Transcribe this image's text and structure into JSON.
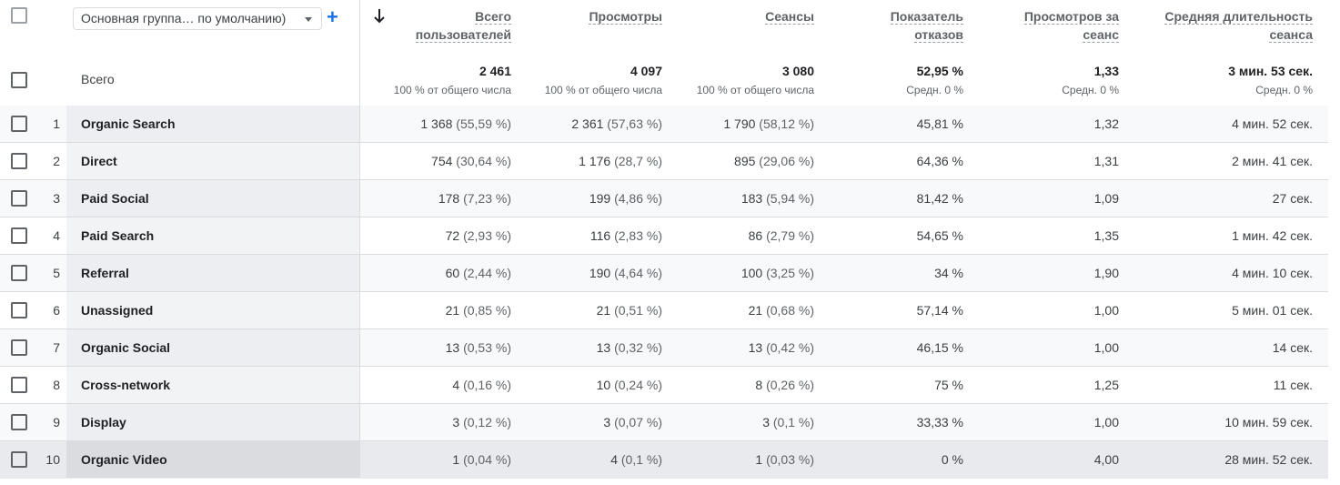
{
  "header": {
    "dimension_select": "Основная группа… по умолчанию)",
    "total_label": "Всего",
    "columns": [
      {
        "line1": "Всего",
        "line2": "пользователей"
      },
      {
        "line1": "Просмотры",
        "line2": ""
      },
      {
        "line1": "Сеансы",
        "line2": ""
      },
      {
        "line1": "Показатель",
        "line2": "отказов"
      },
      {
        "line1": "Просмотров за",
        "line2": "сеанс"
      },
      {
        "line1": "Средняя длительность",
        "line2": "сеанса"
      }
    ],
    "totals": [
      {
        "value": "2 461",
        "sub": "100 % от общего числа"
      },
      {
        "value": "4 097",
        "sub": "100 % от общего числа"
      },
      {
        "value": "3 080",
        "sub": "100 % от общего числа"
      },
      {
        "value": "52,95 %",
        "sub": "Средн. 0 %"
      },
      {
        "value": "1,33",
        "sub": "Средн. 0 %"
      },
      {
        "value": "3 мин. 53 сек.",
        "sub": "Средн. 0 %"
      }
    ]
  },
  "rows": [
    {
      "n": "1",
      "name": "Organic Search",
      "users": "1 368",
      "users_pct": "(55,59 %)",
      "views": "2 361",
      "views_pct": "(57,63 %)",
      "sessions": "1 790",
      "sessions_pct": "(58,12 %)",
      "bounce": "45,81 %",
      "vps": "1,32",
      "dur": "4 мин. 52 сек."
    },
    {
      "n": "2",
      "name": "Direct",
      "users": "754",
      "users_pct": "(30,64 %)",
      "views": "1 176",
      "views_pct": "(28,7 %)",
      "sessions": "895",
      "sessions_pct": "(29,06 %)",
      "bounce": "64,36 %",
      "vps": "1,31",
      "dur": "2 мин. 41 сек."
    },
    {
      "n": "3",
      "name": "Paid Social",
      "users": "178",
      "users_pct": "(7,23 %)",
      "views": "199",
      "views_pct": "(4,86 %)",
      "sessions": "183",
      "sessions_pct": "(5,94 %)",
      "bounce": "81,42 %",
      "vps": "1,09",
      "dur": "27 сек."
    },
    {
      "n": "4",
      "name": "Paid Search",
      "users": "72",
      "users_pct": "(2,93 %)",
      "views": "116",
      "views_pct": "(2,83 %)",
      "sessions": "86",
      "sessions_pct": "(2,79 %)",
      "bounce": "54,65 %",
      "vps": "1,35",
      "dur": "1 мин. 42 сек."
    },
    {
      "n": "5",
      "name": "Referral",
      "users": "60",
      "users_pct": "(2,44 %)",
      "views": "190",
      "views_pct": "(4,64 %)",
      "sessions": "100",
      "sessions_pct": "(3,25 %)",
      "bounce": "34 %",
      "vps": "1,90",
      "dur": "4 мин. 10 сек."
    },
    {
      "n": "6",
      "name": "Unassigned",
      "users": "21",
      "users_pct": "(0,85 %)",
      "views": "21",
      "views_pct": "(0,51 %)",
      "sessions": "21",
      "sessions_pct": "(0,68 %)",
      "bounce": "57,14 %",
      "vps": "1,00",
      "dur": "5 мин. 01 сек."
    },
    {
      "n": "7",
      "name": "Organic Social",
      "users": "13",
      "users_pct": "(0,53 %)",
      "views": "13",
      "views_pct": "(0,32 %)",
      "sessions": "13",
      "sessions_pct": "(0,42 %)",
      "bounce": "46,15 %",
      "vps": "1,00",
      "dur": "14 сек."
    },
    {
      "n": "8",
      "name": "Cross-network",
      "users": "4",
      "users_pct": "(0,16 %)",
      "views": "10",
      "views_pct": "(0,24 %)",
      "sessions": "8",
      "sessions_pct": "(0,26 %)",
      "bounce": "75 %",
      "vps": "1,25",
      "dur": "11 сек."
    },
    {
      "n": "9",
      "name": "Display",
      "users": "3",
      "users_pct": "(0,12 %)",
      "views": "3",
      "views_pct": "(0,07 %)",
      "sessions": "3",
      "sessions_pct": "(0,1 %)",
      "bounce": "33,33 %",
      "vps": "1,00",
      "dur": "10 мин. 59 сек."
    },
    {
      "n": "10",
      "name": "Organic Video",
      "users": "1",
      "users_pct": "(0,04 %)",
      "views": "4",
      "views_pct": "(0,1 %)",
      "sessions": "1",
      "sessions_pct": "(0,03 %)",
      "bounce": "0 %",
      "vps": "4,00",
      "dur": "28 мин. 52 сек."
    }
  ]
}
